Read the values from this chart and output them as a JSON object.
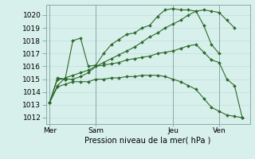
{
  "background_color": "#d8f0ec",
  "grid_color_major": "#c0ddd8",
  "grid_color_minor": "#d0e8e4",
  "line_color": "#2d6a2d",
  "xlabel": "Pression niveau de la mer( hPa )",
  "ylim": [
    1011.5,
    1020.8
  ],
  "yticks": [
    1012,
    1013,
    1014,
    1015,
    1016,
    1017,
    1018,
    1019,
    1020
  ],
  "xtick_labels": [
    "Mer",
    "Sam",
    "Jeu",
    "Ven"
  ],
  "xtick_positions": [
    0,
    6,
    16,
    22
  ],
  "xlim": [
    -0.5,
    26
  ],
  "vlines": [
    0,
    6,
    16,
    22
  ],
  "series": [
    {
      "x": [
        0,
        1,
        2,
        3,
        4,
        5,
        6,
        7,
        8,
        9,
        10,
        11,
        12,
        13,
        14,
        15,
        16,
        17,
        18,
        19,
        20,
        21,
        22,
        23,
        24
      ],
      "y": [
        1013.2,
        1014.5,
        1015.1,
        1015.3,
        1015.5,
        1015.7,
        1016.0,
        1016.3,
        1016.6,
        1016.9,
        1017.2,
        1017.5,
        1017.9,
        1018.3,
        1018.6,
        1019.0,
        1019.3,
        1019.6,
        1020.0,
        1020.3,
        1020.4,
        1020.3,
        1020.2,
        1019.6,
        1019.0
      ]
    },
    {
      "x": [
        0,
        1,
        2,
        3,
        4,
        5,
        6,
        7,
        8,
        9,
        10,
        11,
        12,
        13,
        14,
        15,
        16,
        17,
        18,
        19,
        20,
        21,
        22
      ],
      "y": [
        1013.2,
        1015.1,
        1015.0,
        1018.0,
        1018.2,
        1016.0,
        1016.1,
        1017.0,
        1017.7,
        1018.1,
        1018.5,
        1018.6,
        1019.0,
        1019.2,
        1019.9,
        1020.4,
        1020.5,
        1020.4,
        1020.4,
        1020.3,
        1019.2,
        1017.7,
        1017.0
      ]
    },
    {
      "x": [
        0,
        1,
        2,
        3,
        4,
        5,
        6,
        7,
        8,
        9,
        10,
        11,
        12,
        13,
        14,
        15,
        16,
        17,
        18,
        19,
        20,
        21,
        22,
        23,
        24,
        25
      ],
      "y": [
        1013.2,
        1015.0,
        1015.0,
        1015.0,
        1015.2,
        1015.5,
        1016.0,
        1016.1,
        1016.2,
        1016.3,
        1016.5,
        1016.6,
        1016.7,
        1016.8,
        1017.0,
        1017.1,
        1017.2,
        1017.4,
        1017.6,
        1017.7,
        1017.1,
        1016.5,
        1016.3,
        1015.0,
        1014.5,
        1012.0
      ]
    },
    {
      "x": [
        0,
        1,
        2,
        3,
        4,
        5,
        6,
        7,
        8,
        9,
        10,
        11,
        12,
        13,
        14,
        15,
        16,
        17,
        18,
        19,
        20,
        21,
        22,
        23,
        24,
        25
      ],
      "y": [
        1013.2,
        1014.4,
        1014.6,
        1014.8,
        1014.8,
        1014.8,
        1015.0,
        1015.0,
        1015.1,
        1015.1,
        1015.2,
        1015.2,
        1015.3,
        1015.3,
        1015.3,
        1015.2,
        1015.0,
        1014.8,
        1014.5,
        1014.2,
        1013.5,
        1012.8,
        1012.5,
        1012.2,
        1012.1,
        1012.0
      ]
    }
  ],
  "figsize": [
    3.2,
    2.0
  ],
  "dpi": 100
}
